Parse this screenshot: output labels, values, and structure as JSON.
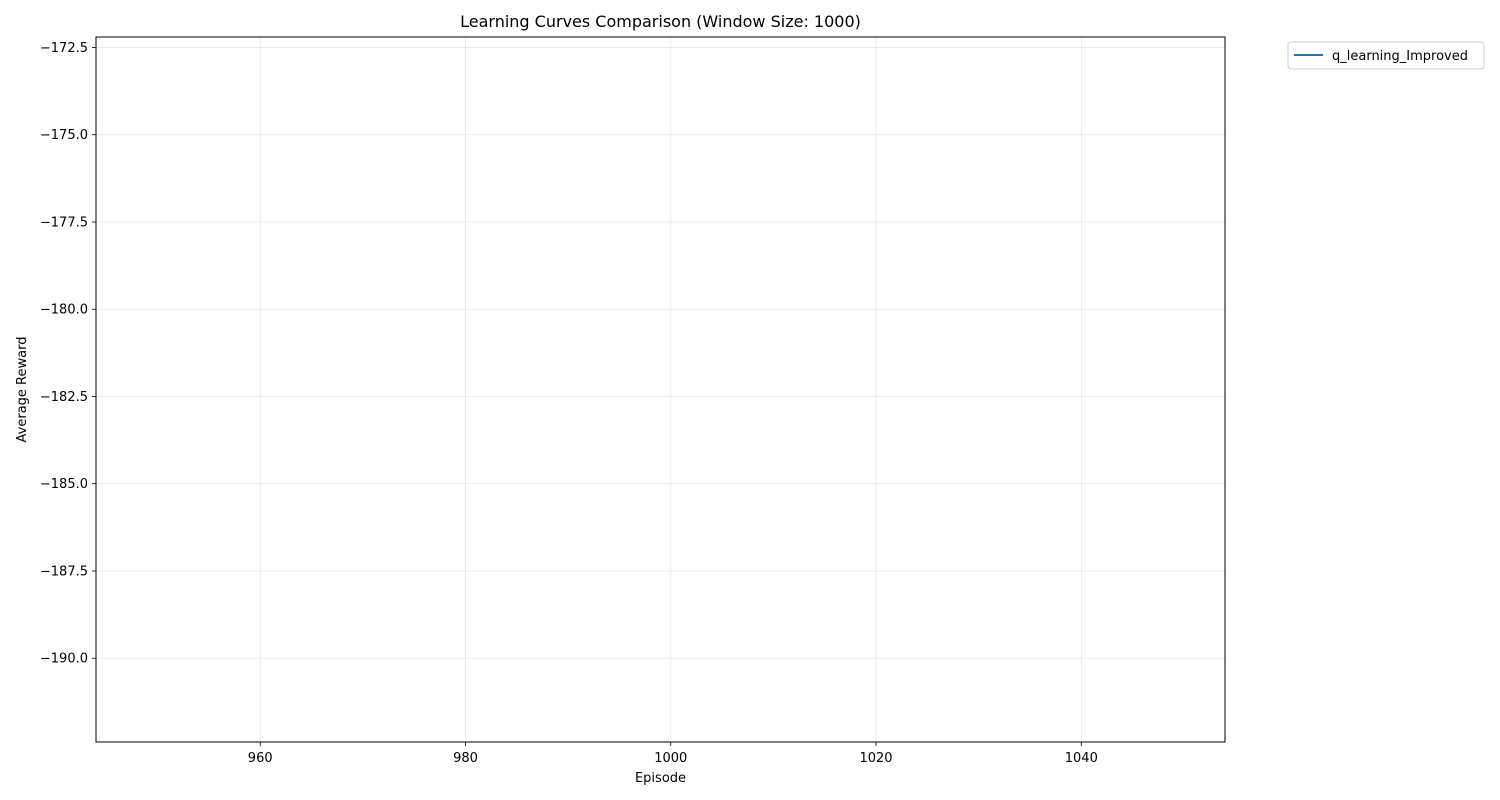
{
  "chart_data": {
    "type": "line",
    "title": "Learning Curves Comparison (Window Size: 1000)",
    "xlabel": "Episode",
    "ylabel": "Average Reward",
    "xlim": [
      944,
      1054
    ],
    "ylim": [
      -192.4,
      -172.2
    ],
    "xticks": [
      960,
      980,
      1000,
      1020,
      1040
    ],
    "yticks": [
      -172.5,
      -175.0,
      -177.5,
      -180.0,
      -182.5,
      -185.0,
      -187.5,
      -190.0
    ],
    "xtick_labels": [
      "960",
      "980",
      "1000",
      "1020",
      "1040"
    ],
    "ytick_labels": [
      "−172.5",
      "−175.0",
      "−177.5",
      "−180.0",
      "−182.5",
      "−185.0",
      "−187.5",
      "−190.0"
    ],
    "grid": true,
    "legend_position": "outside-top-right",
    "series": [
      {
        "name": "q_learning_Improved",
        "color": "#1f77b4",
        "x": [],
        "y": []
      }
    ]
  }
}
